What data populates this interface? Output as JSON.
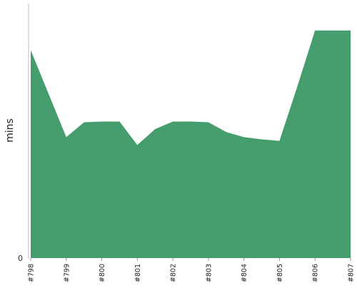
{
  "chart_data": {
    "type": "area",
    "ylabel": "mins",
    "xlabel": "",
    "categories": [
      "#798",
      "#799",
      "#800",
      "#801",
      "#802",
      "#803",
      "#804",
      "#805",
      "#806",
      "#807"
    ],
    "series": [
      {
        "x": [
          0,
          1,
          1.5,
          2,
          2.5,
          3,
          3.5,
          4,
          4.5,
          5,
          5.5,
          6,
          6.5,
          7,
          7.5,
          8,
          8.5,
          9
        ],
        "values": [
          85.0,
          49.4,
          55.5,
          55.8,
          55.8,
          46.2,
          52.7,
          55.8,
          55.8,
          55.5,
          51.5,
          49.4,
          48.5,
          47.9,
          70.0,
          93.0,
          93.0,
          93.0
        ],
        "color": "#459c6c"
      }
    ],
    "ylim": [
      0,
      104
    ],
    "yticks": [
      0
    ],
    "ytick_labels": [
      "0"
    ],
    "grid": false,
    "legend": "none"
  }
}
